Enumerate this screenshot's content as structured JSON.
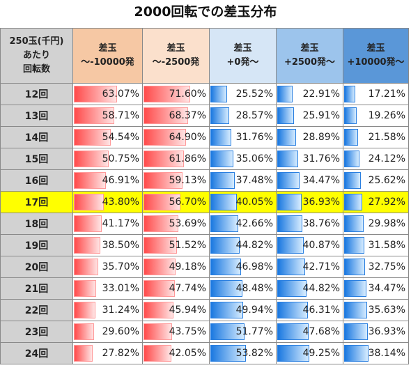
{
  "title": "2000回転での差玉分布",
  "header": [
    {
      "lines": [
        "250玉(千円)",
        "あたり",
        "回転数"
      ]
    },
    {
      "lines": [
        "差玉",
        "～-10000発"
      ]
    },
    {
      "lines": [
        "差玉",
        "～-2500発"
      ]
    },
    {
      "lines": [
        "差玉",
        "+0発～"
      ]
    },
    {
      "lines": [
        "差玉",
        "+2500発～"
      ]
    },
    {
      "lines": [
        "差玉",
        "+10000発～"
      ]
    }
  ],
  "highlight_row": "17回",
  "rows": [
    {
      "label": "12回",
      "cells": [
        "63.07%",
        "71.60%",
        "25.52%",
        "22.91%",
        "17.21%"
      ],
      "values": [
        63.07,
        71.6,
        25.52,
        22.91,
        17.21
      ]
    },
    {
      "label": "13回",
      "cells": [
        "58.71%",
        "68.37%",
        "28.57%",
        "25.91%",
        "19.26%"
      ],
      "values": [
        58.71,
        68.37,
        28.57,
        25.91,
        19.26
      ]
    },
    {
      "label": "14回",
      "cells": [
        "54.54%",
        "64.90%",
        "31.76%",
        "28.89%",
        "21.58%"
      ],
      "values": [
        54.54,
        64.9,
        31.76,
        28.89,
        21.58
      ]
    },
    {
      "label": "15回",
      "cells": [
        "50.75%",
        "61.86%",
        "35.06%",
        "31.76%",
        "24.12%"
      ],
      "values": [
        50.75,
        61.86,
        35.06,
        31.76,
        24.12
      ]
    },
    {
      "label": "16回",
      "cells": [
        "46.91%",
        "59.13%",
        "37.48%",
        "34.47%",
        "25.62%"
      ],
      "values": [
        46.91,
        59.13,
        37.48,
        34.47,
        25.62
      ]
    },
    {
      "label": "17回",
      "cells": [
        "43.80%",
        "56.70%",
        "40.05%",
        "36.93%",
        "27.92%"
      ],
      "values": [
        43.8,
        56.7,
        40.05,
        36.93,
        27.92
      ]
    },
    {
      "label": "18回",
      "cells": [
        "41.17%",
        "53.69%",
        "42.66%",
        "38.76%",
        "29.98%"
      ],
      "values": [
        41.17,
        53.69,
        42.66,
        38.76,
        29.98
      ]
    },
    {
      "label": "19回",
      "cells": [
        "38.50%",
        "51.52%",
        "44.82%",
        "40.87%",
        "31.58%"
      ],
      "values": [
        38.5,
        51.52,
        44.82,
        40.87,
        31.58
      ]
    },
    {
      "label": "20回",
      "cells": [
        "35.70%",
        "49.18%",
        "46.98%",
        "42.71%",
        "32.75%"
      ],
      "values": [
        35.7,
        49.18,
        46.98,
        42.71,
        32.75
      ]
    },
    {
      "label": "21回",
      "cells": [
        "33.01%",
        "47.74%",
        "48.48%",
        "44.82%",
        "34.47%"
      ],
      "values": [
        33.01,
        47.74,
        48.48,
        44.82,
        34.47
      ]
    },
    {
      "label": "22回",
      "cells": [
        "31.24%",
        "45.94%",
        "49.94%",
        "46.31%",
        "35.63%"
      ],
      "values": [
        31.24,
        45.94,
        49.94,
        46.31,
        35.63
      ]
    },
    {
      "label": "23回",
      "cells": [
        "29.60%",
        "43.75%",
        "51.77%",
        "47.68%",
        "36.93%"
      ],
      "values": [
        29.6,
        43.75,
        51.77,
        47.68,
        36.93
      ]
    },
    {
      "label": "24回",
      "cells": [
        "27.82%",
        "42.05%",
        "53.82%",
        "49.25%",
        "38.14%"
      ],
      "values": [
        27.82,
        42.05,
        53.82,
        49.25,
        38.14
      ]
    }
  ]
}
